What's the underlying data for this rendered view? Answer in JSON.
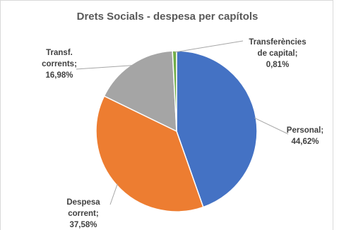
{
  "chart_data": {
    "type": "pie",
    "title": "Drets Socials - despesa per capítols",
    "slices": [
      {
        "label_lines": [
          "Personal;",
          "44,62%"
        ],
        "value": 44.62,
        "color": "#4472C4"
      },
      {
        "label_lines": [
          "Despesa",
          "corrent;",
          "37,58%"
        ],
        "value": 37.58,
        "color": "#ED7D31"
      },
      {
        "label_lines": [
          "Transf.",
          "corrents;",
          "16,98%"
        ],
        "value": 16.98,
        "color": "#A5A5A5"
      },
      {
        "label_lines": [
          "Transferències",
          "de capital;",
          "0,81%"
        ],
        "value": 0.81,
        "color": "#70AD47"
      }
    ],
    "start": "top",
    "direction": "clockwise",
    "label_style": "outside with leader lines"
  }
}
